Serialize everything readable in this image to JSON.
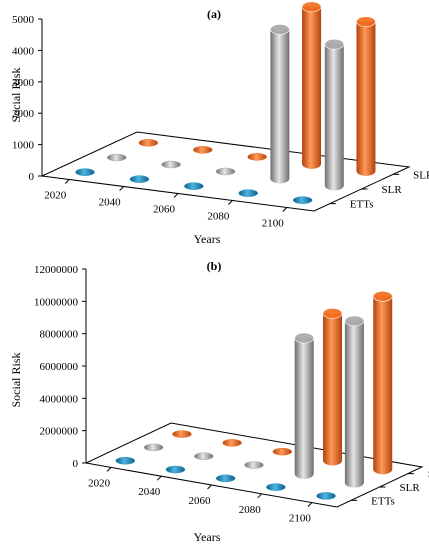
{
  "chart_data": [
    {
      "type": "bar",
      "panel_label": "(a)",
      "ylabel": "Social Risk",
      "xlabel": "Years",
      "categories": [
        "2020",
        "2040",
        "2060",
        "2080",
        "2100"
      ],
      "depth_categories": [
        "ETTs",
        "SLR",
        "SLR+ETTs"
      ],
      "yticks": [
        "0",
        "1000",
        "2000",
        "3000",
        "4000",
        "5000"
      ],
      "ylim": [
        0,
        5000
      ],
      "grid": false,
      "series": [
        {
          "name": "ETTs",
          "values": [
            0,
            0,
            0,
            0,
            0
          ]
        },
        {
          "name": "SLR",
          "values": [
            0,
            0,
            0,
            4750,
            4500
          ]
        },
        {
          "name": "SLR+ETTs",
          "values": [
            0,
            0,
            0,
            5000,
            4750
          ]
        }
      ],
      "colors": {
        "ETTs": "#1b8fc4",
        "SLR": "#a6a6a6",
        "SLR+ETTs": "#f26a1b"
      }
    },
    {
      "type": "bar",
      "panel_label": "(b)",
      "ylabel": "Social Risk",
      "xlabel": "Years",
      "categories": [
        "2020",
        "2040",
        "2060",
        "2080",
        "2100"
      ],
      "depth_categories": [
        "ETTs",
        "SLR",
        "SLR+ETTs"
      ],
      "yticks": [
        "0",
        "2000000",
        "4000000",
        "6000000",
        "8000000",
        "10000000",
        "12000000"
      ],
      "ylim": [
        0,
        12000000
      ],
      "grid": false,
      "series": [
        {
          "name": "ETTs",
          "values": [
            0,
            0,
            0,
            0,
            0
          ]
        },
        {
          "name": "SLR",
          "values": [
            0,
            0,
            0,
            8400000,
            10000000
          ]
        },
        {
          "name": "SLR+ETTs",
          "values": [
            0,
            0,
            0,
            9100000,
            10700000
          ]
        }
      ],
      "colors": {
        "ETTs": "#1b8fc4",
        "SLR": "#a6a6a6",
        "SLR+ETTs": "#f26a1b"
      }
    }
  ]
}
